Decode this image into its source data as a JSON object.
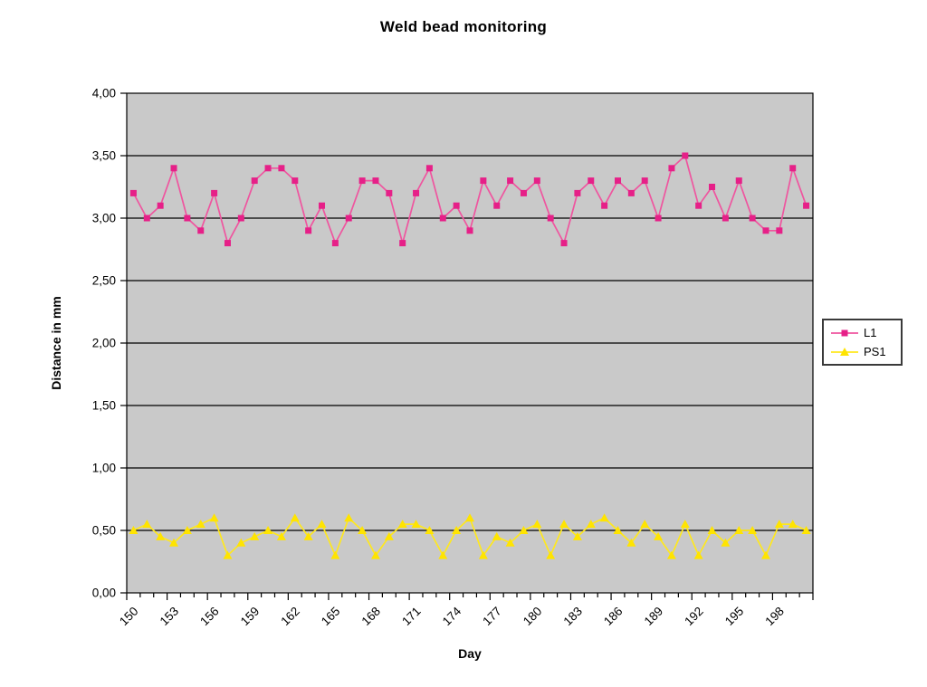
{
  "chart_data": {
    "type": "line",
    "title": "Weld bead monitoring",
    "xlabel": "Day",
    "ylabel": "Distance in mm",
    "x": [
      150,
      151,
      152,
      153,
      154,
      155,
      156,
      157,
      158,
      159,
      160,
      161,
      162,
      163,
      164,
      165,
      166,
      167,
      168,
      169,
      170,
      171,
      172,
      173,
      174,
      175,
      176,
      177,
      178,
      179,
      180,
      181,
      182,
      183,
      184,
      185,
      186,
      187,
      188,
      189,
      190,
      191,
      192,
      193,
      194,
      195,
      196,
      197,
      198,
      199,
      200
    ],
    "x_tick_labels": [
      "150",
      "153",
      "156",
      "159",
      "162",
      "165",
      "168",
      "171",
      "174",
      "177",
      "180",
      "183",
      "186",
      "189",
      "192",
      "195",
      "198"
    ],
    "x_label_every": 3,
    "ylim": [
      0,
      4
    ],
    "y_tick_step": 0.5,
    "y_tick_labels": [
      "0,00",
      "0,50",
      "1,00",
      "1,50",
      "2,00",
      "2,50",
      "3,00",
      "3,50",
      "4,00"
    ],
    "grid": true,
    "plot_background": "#c9c9c9",
    "gridline_color": "#000000",
    "legend_position": "right",
    "series": [
      {
        "name": "L1",
        "color": "#e62088",
        "line_color": "#ef559f",
        "marker": "square",
        "values": [
          3.2,
          3.0,
          3.1,
          3.4,
          3.0,
          2.9,
          3.2,
          2.8,
          3.0,
          3.3,
          3.4,
          3.4,
          3.3,
          2.9,
          3.1,
          2.8,
          3.0,
          3.3,
          3.3,
          3.2,
          2.8,
          3.2,
          3.4,
          3.0,
          3.1,
          2.9,
          3.3,
          3.1,
          3.3,
          3.2,
          3.3,
          3.0,
          2.8,
          3.2,
          3.3,
          3.1,
          3.3,
          3.2,
          3.3,
          3.0,
          3.4,
          3.5,
          3.1,
          3.25,
          3.0,
          3.3,
          3.0,
          2.9,
          2.9,
          3.4,
          3.1
        ]
      },
      {
        "name": "PS1",
        "color": "#ffe400",
        "line_color": "#ffe81e",
        "marker": "triangle",
        "values": [
          0.5,
          0.55,
          0.45,
          0.4,
          0.5,
          0.55,
          0.6,
          0.3,
          0.4,
          0.45,
          0.5,
          0.45,
          0.6,
          0.45,
          0.55,
          0.3,
          0.6,
          0.5,
          0.3,
          0.45,
          0.55,
          0.55,
          0.5,
          0.3,
          0.5,
          0.6,
          0.3,
          0.45,
          0.4,
          0.5,
          0.55,
          0.3,
          0.55,
          0.45,
          0.55,
          0.6,
          0.5,
          0.4,
          0.55,
          0.45,
          0.3,
          0.55,
          0.3,
          0.5,
          0.4,
          0.5,
          0.5,
          0.3,
          0.55,
          0.55,
          0.5
        ]
      }
    ]
  }
}
